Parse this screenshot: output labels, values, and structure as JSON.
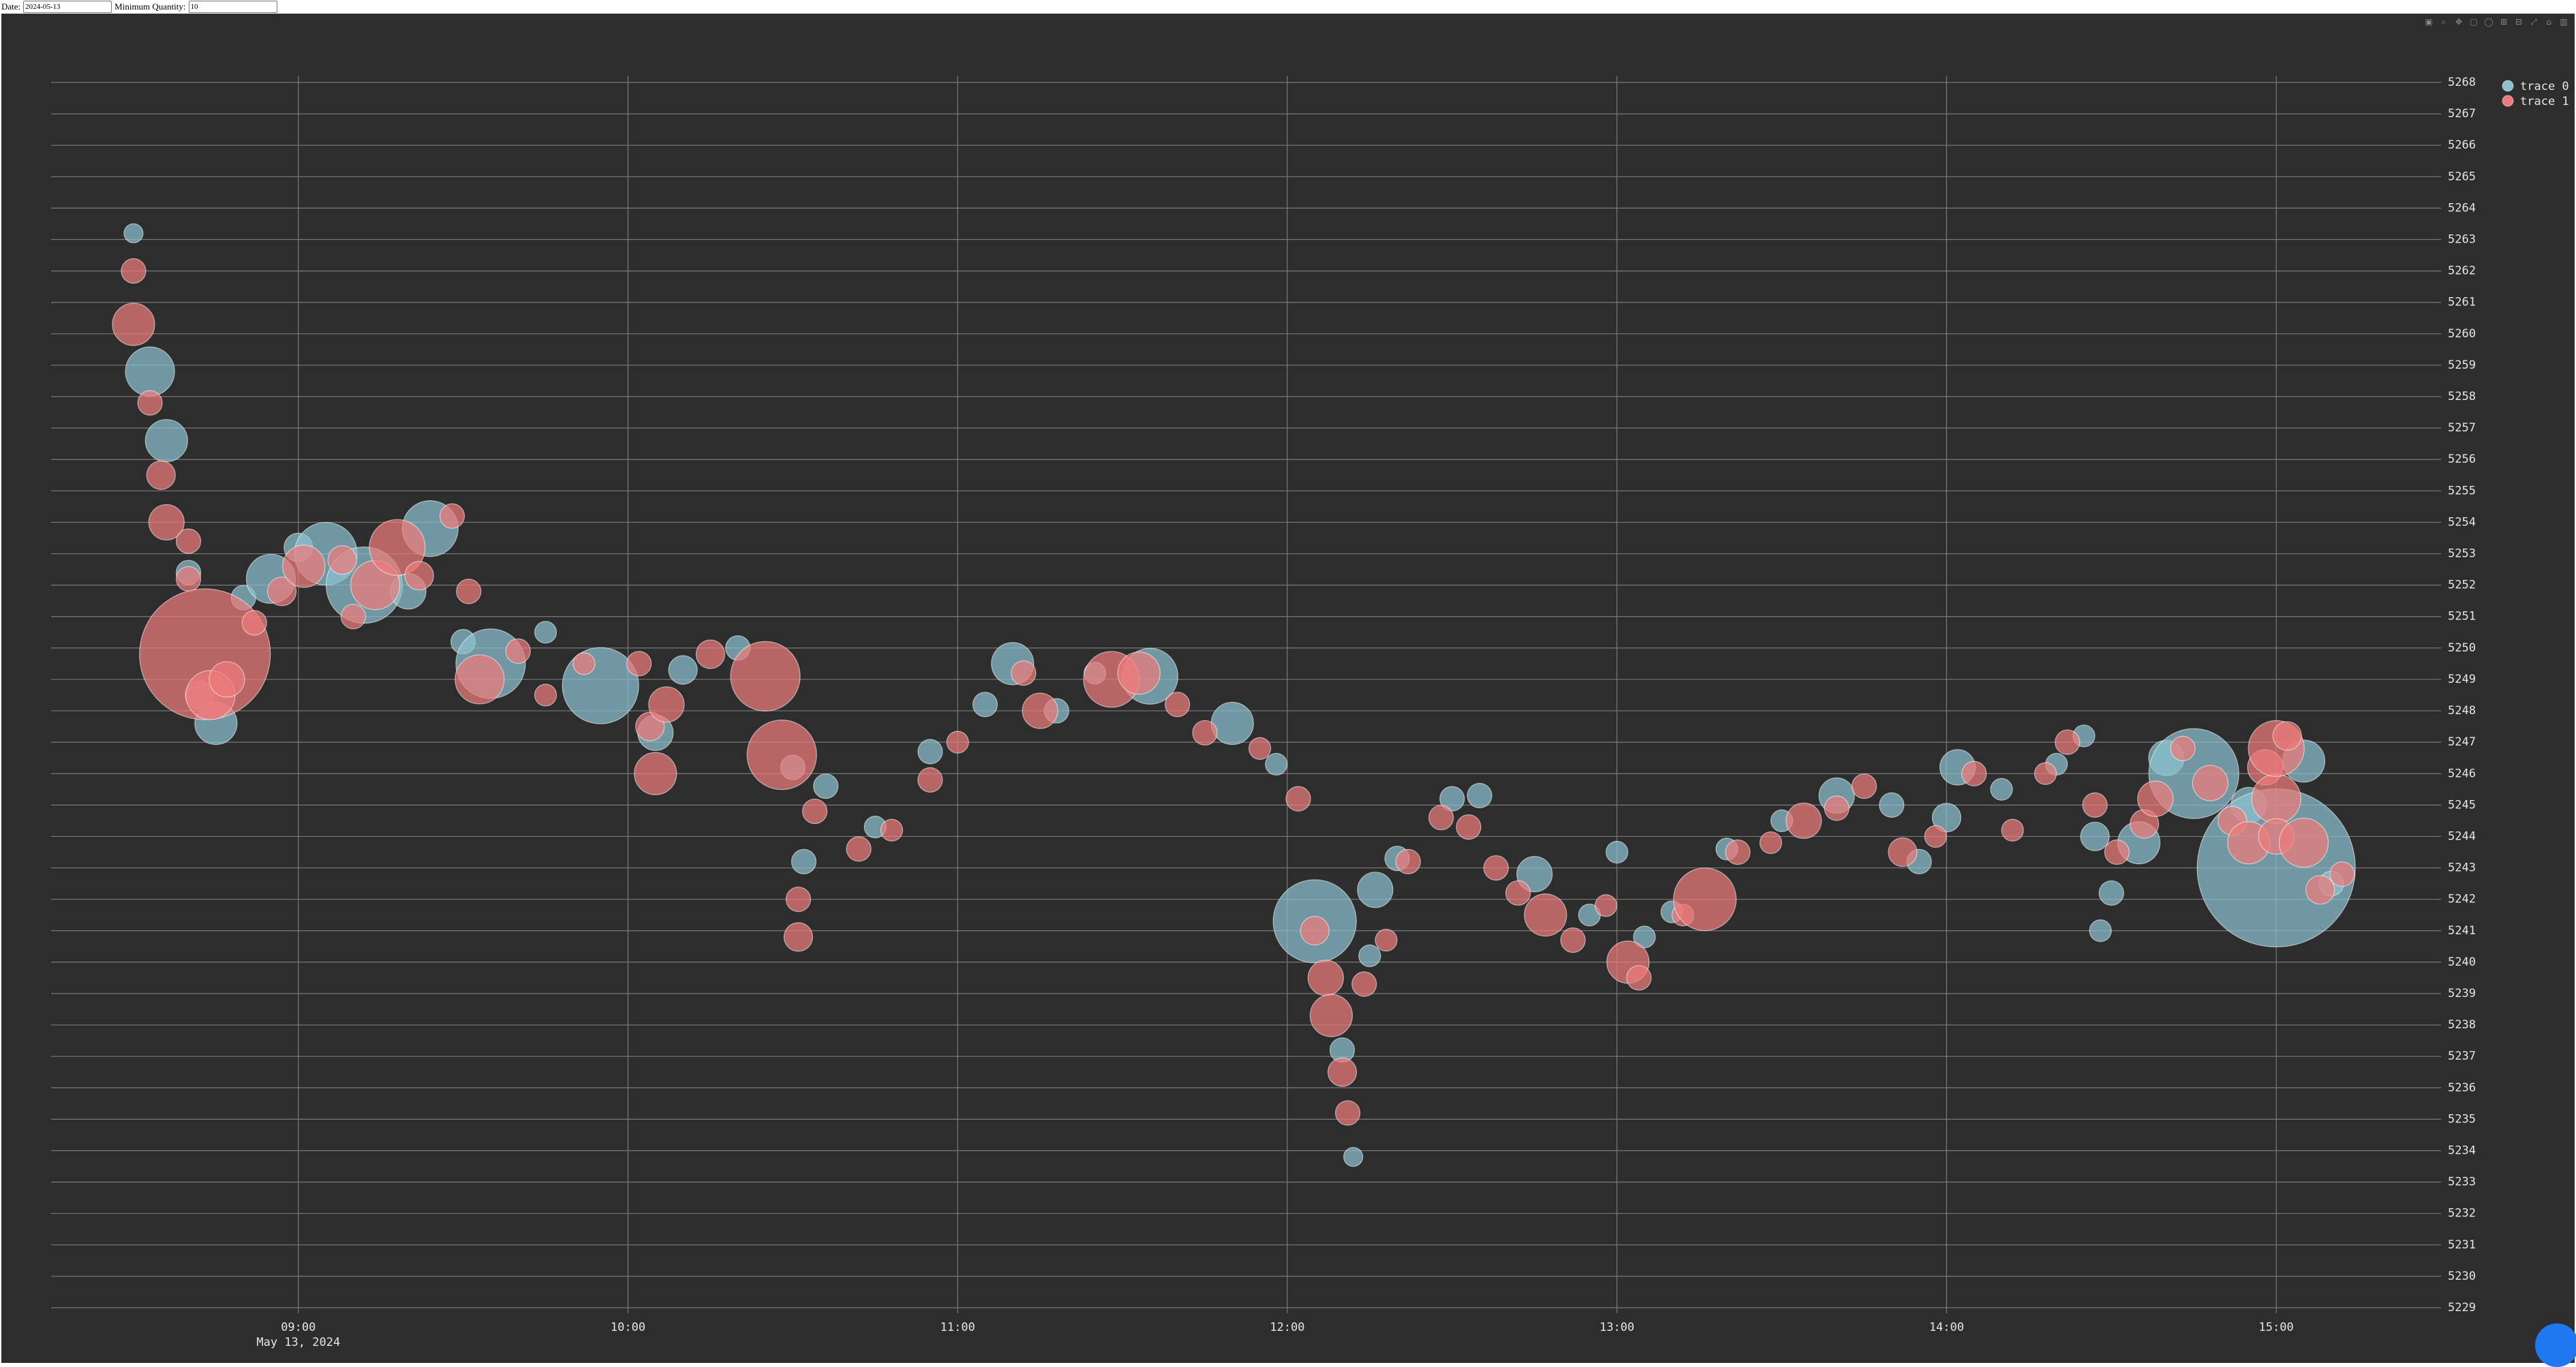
{
  "controls": {
    "date_label": "Date:",
    "date_value": "2024-05-13",
    "qty_label": "Minimum Quantity:",
    "qty_value": "10"
  },
  "modebar": [
    "camera-icon",
    "zoom-icon",
    "pan-icon",
    "box-select-icon",
    "lasso-icon",
    "zoom-in-icon",
    "zoom-out-icon",
    "autoscale-icon",
    "reset-axes-icon",
    "plotly-logo-icon"
  ],
  "colors": {
    "background": "#2d2d2d",
    "grid": "#7a7a7a",
    "trace0": "#8cc2d0",
    "trace1": "#ee7b7b",
    "text": "#e6e6e6"
  },
  "chart_data": {
    "type": "scatter",
    "title": "",
    "xlabel": "",
    "ylabel": "",
    "x_date_label": "May 13, 2024",
    "xlim": [
      "08:15",
      "15:30"
    ],
    "ylim": [
      5229,
      5268
    ],
    "xticks": [
      "09:00",
      "10:00",
      "11:00",
      "12:00",
      "13:00",
      "14:00",
      "15:00"
    ],
    "yticks": [
      5229,
      5230,
      5231,
      5232,
      5233,
      5234,
      5235,
      5236,
      5237,
      5238,
      5239,
      5240,
      5241,
      5242,
      5243,
      5244,
      5245,
      5246,
      5247,
      5248,
      5249,
      5250,
      5251,
      5252,
      5253,
      5254,
      5255,
      5256,
      5257,
      5258,
      5259,
      5260,
      5261,
      5262,
      5263,
      5264,
      5265,
      5266,
      5267,
      5268
    ],
    "legend_position": "top-right",
    "grid": true,
    "series": [
      {
        "name": "trace 0",
        "color": "#8cc2d0",
        "points": [
          {
            "x": "08:30",
            "y": 5263.2,
            "s": 0.8
          },
          {
            "x": "08:33",
            "y": 5258.8,
            "s": 3
          },
          {
            "x": "08:36",
            "y": 5256.6,
            "s": 2.5
          },
          {
            "x": "08:40",
            "y": 5252.4,
            "s": 1.2
          },
          {
            "x": "08:42",
            "y": 5248.5,
            "s": 1.5
          },
          {
            "x": "08:45",
            "y": 5247.6,
            "s": 2.5
          },
          {
            "x": "08:50",
            "y": 5251.6,
            "s": 1.2
          },
          {
            "x": "08:55",
            "y": 5252.2,
            "s": 3
          },
          {
            "x": "09:00",
            "y": 5253.2,
            "s": 1.5
          },
          {
            "x": "09:05",
            "y": 5253.0,
            "s": 4
          },
          {
            "x": "09:12",
            "y": 5252.0,
            "s": 5
          },
          {
            "x": "09:20",
            "y": 5251.8,
            "s": 2
          },
          {
            "x": "09:24",
            "y": 5253.8,
            "s": 3.5
          },
          {
            "x": "09:30",
            "y": 5250.2,
            "s": 1.2
          },
          {
            "x": "09:35",
            "y": 5249.5,
            "s": 4.5
          },
          {
            "x": "09:45",
            "y": 5250.5,
            "s": 1
          },
          {
            "x": "09:55",
            "y": 5248.8,
            "s": 5
          },
          {
            "x": "10:05",
            "y": 5247.3,
            "s": 2
          },
          {
            "x": "10:10",
            "y": 5249.3,
            "s": 1.5
          },
          {
            "x": "10:20",
            "y": 5250.0,
            "s": 1.2
          },
          {
            "x": "10:30",
            "y": 5246.2,
            "s": 1.2
          },
          {
            "x": "10:32",
            "y": 5243.2,
            "s": 1.2
          },
          {
            "x": "10:36",
            "y": 5245.6,
            "s": 1.2
          },
          {
            "x": "10:45",
            "y": 5244.3,
            "s": 1
          },
          {
            "x": "10:55",
            "y": 5246.7,
            "s": 1.2
          },
          {
            "x": "11:05",
            "y": 5248.2,
            "s": 1.2
          },
          {
            "x": "11:10",
            "y": 5249.5,
            "s": 2.5
          },
          {
            "x": "11:18",
            "y": 5248.0,
            "s": 1.2
          },
          {
            "x": "11:25",
            "y": 5249.2,
            "s": 1
          },
          {
            "x": "11:35",
            "y": 5249.1,
            "s": 3.5
          },
          {
            "x": "11:50",
            "y": 5247.6,
            "s": 2.5
          },
          {
            "x": "11:58",
            "y": 5246.3,
            "s": 1
          },
          {
            "x": "12:05",
            "y": 5241.3,
            "s": 5.5
          },
          {
            "x": "12:10",
            "y": 5237.2,
            "s": 1.2
          },
          {
            "x": "12:12",
            "y": 5233.8,
            "s": 0.8
          },
          {
            "x": "12:15",
            "y": 5240.2,
            "s": 1
          },
          {
            "x": "12:16",
            "y": 5242.3,
            "s": 2
          },
          {
            "x": "12:20",
            "y": 5243.3,
            "s": 1.2
          },
          {
            "x": "12:30",
            "y": 5245.2,
            "s": 1.2
          },
          {
            "x": "12:35",
            "y": 5245.3,
            "s": 1.2
          },
          {
            "x": "12:45",
            "y": 5242.8,
            "s": 2
          },
          {
            "x": "12:55",
            "y": 5241.5,
            "s": 1
          },
          {
            "x": "13:00",
            "y": 5243.5,
            "s": 1
          },
          {
            "x": "13:05",
            "y": 5240.8,
            "s": 1
          },
          {
            "x": "13:10",
            "y": 5241.6,
            "s": 1
          },
          {
            "x": "13:20",
            "y": 5243.6,
            "s": 1
          },
          {
            "x": "13:30",
            "y": 5244.5,
            "s": 1
          },
          {
            "x": "13:40",
            "y": 5245.3,
            "s": 2
          },
          {
            "x": "13:50",
            "y": 5245.0,
            "s": 1.2
          },
          {
            "x": "13:55",
            "y": 5243.2,
            "s": 1.2
          },
          {
            "x": "14:00",
            "y": 5244.6,
            "s": 1.5
          },
          {
            "x": "14:02",
            "y": 5246.2,
            "s": 2
          },
          {
            "x": "14:10",
            "y": 5245.5,
            "s": 1
          },
          {
            "x": "14:20",
            "y": 5246.3,
            "s": 1
          },
          {
            "x": "14:25",
            "y": 5247.2,
            "s": 1
          },
          {
            "x": "14:27",
            "y": 5244.0,
            "s": 1.5
          },
          {
            "x": "14:28",
            "y": 5241.0,
            "s": 1
          },
          {
            "x": "14:30",
            "y": 5242.2,
            "s": 1.2
          },
          {
            "x": "14:35",
            "y": 5243.8,
            "s": 2.5
          },
          {
            "x": "14:40",
            "y": 5246.5,
            "s": 2
          },
          {
            "x": "14:45",
            "y": 5246.0,
            "s": 6
          },
          {
            "x": "14:55",
            "y": 5245.0,
            "s": 2
          },
          {
            "x": "15:00",
            "y": 5243.0,
            "s": 11
          },
          {
            "x": "15:05",
            "y": 5246.4,
            "s": 2.5
          },
          {
            "x": "15:10",
            "y": 5242.5,
            "s": 1.2
          }
        ]
      },
      {
        "name": "trace 1",
        "color": "#ee7b7b",
        "points": [
          {
            "x": "08:30",
            "y": 5262.0,
            "s": 1.2
          },
          {
            "x": "08:30",
            "y": 5260.3,
            "s": 2.5
          },
          {
            "x": "08:33",
            "y": 5257.8,
            "s": 1.2
          },
          {
            "x": "08:35",
            "y": 5255.5,
            "s": 1.5
          },
          {
            "x": "08:36",
            "y": 5254.0,
            "s": 2
          },
          {
            "x": "08:40",
            "y": 5253.4,
            "s": 1.2
          },
          {
            "x": "08:40",
            "y": 5252.2,
            "s": 1.2
          },
          {
            "x": "08:43",
            "y": 5249.8,
            "s": 9
          },
          {
            "x": "08:44",
            "y": 5248.5,
            "s": 3
          },
          {
            "x": "08:47",
            "y": 5249.0,
            "s": 2
          },
          {
            "x": "08:52",
            "y": 5250.8,
            "s": 1.2
          },
          {
            "x": "08:57",
            "y": 5251.8,
            "s": 1.5
          },
          {
            "x": "09:01",
            "y": 5252.6,
            "s": 2.5
          },
          {
            "x": "09:08",
            "y": 5252.8,
            "s": 1.5
          },
          {
            "x": "09:10",
            "y": 5251.0,
            "s": 1.2
          },
          {
            "x": "09:14",
            "y": 5252.0,
            "s": 3
          },
          {
            "x": "09:18",
            "y": 5253.2,
            "s": 3.5
          },
          {
            "x": "09:22",
            "y": 5252.3,
            "s": 1.5
          },
          {
            "x": "09:28",
            "y": 5254.2,
            "s": 1.2
          },
          {
            "x": "09:31",
            "y": 5251.8,
            "s": 1.2
          },
          {
            "x": "09:33",
            "y": 5249.0,
            "s": 3
          },
          {
            "x": "09:40",
            "y": 5249.9,
            "s": 1.2
          },
          {
            "x": "09:45",
            "y": 5248.5,
            "s": 1
          },
          {
            "x": "09:52",
            "y": 5249.5,
            "s": 1
          },
          {
            "x": "10:02",
            "y": 5249.5,
            "s": 1.2
          },
          {
            "x": "10:04",
            "y": 5247.5,
            "s": 1.5
          },
          {
            "x": "10:05",
            "y": 5246.0,
            "s": 2.5
          },
          {
            "x": "10:07",
            "y": 5248.2,
            "s": 2
          },
          {
            "x": "10:15",
            "y": 5249.8,
            "s": 1.5
          },
          {
            "x": "10:25",
            "y": 5249.1,
            "s": 4.5
          },
          {
            "x": "10:28",
            "y": 5246.6,
            "s": 4.5
          },
          {
            "x": "10:31",
            "y": 5242.0,
            "s": 1.2
          },
          {
            "x": "10:31",
            "y": 5240.8,
            "s": 1.5
          },
          {
            "x": "10:34",
            "y": 5244.8,
            "s": 1.2
          },
          {
            "x": "10:42",
            "y": 5243.6,
            "s": 1.2
          },
          {
            "x": "10:48",
            "y": 5244.2,
            "s": 1
          },
          {
            "x": "10:55",
            "y": 5245.8,
            "s": 1.2
          },
          {
            "x": "11:00",
            "y": 5247.0,
            "s": 1
          },
          {
            "x": "11:12",
            "y": 5249.2,
            "s": 1.2
          },
          {
            "x": "11:15",
            "y": 5248.0,
            "s": 2
          },
          {
            "x": "11:28",
            "y": 5249.0,
            "s": 3.5
          },
          {
            "x": "11:33",
            "y": 5249.2,
            "s": 2.5
          },
          {
            "x": "11:40",
            "y": 5248.2,
            "s": 1.2
          },
          {
            "x": "11:45",
            "y": 5247.3,
            "s": 1.2
          },
          {
            "x": "11:55",
            "y": 5246.8,
            "s": 1
          },
          {
            "x": "12:02",
            "y": 5245.2,
            "s": 1.2
          },
          {
            "x": "12:05",
            "y": 5241.0,
            "s": 1.5
          },
          {
            "x": "12:07",
            "y": 5239.5,
            "s": 2
          },
          {
            "x": "12:08",
            "y": 5238.3,
            "s": 2.5
          },
          {
            "x": "12:10",
            "y": 5236.5,
            "s": 1.5
          },
          {
            "x": "12:11",
            "y": 5235.2,
            "s": 1.2
          },
          {
            "x": "12:14",
            "y": 5239.3,
            "s": 1.2
          },
          {
            "x": "12:18",
            "y": 5240.7,
            "s": 1
          },
          {
            "x": "12:22",
            "y": 5243.2,
            "s": 1.2
          },
          {
            "x": "12:28",
            "y": 5244.6,
            "s": 1.2
          },
          {
            "x": "12:33",
            "y": 5244.3,
            "s": 1.2
          },
          {
            "x": "12:38",
            "y": 5243.0,
            "s": 1.2
          },
          {
            "x": "12:42",
            "y": 5242.2,
            "s": 1.2
          },
          {
            "x": "12:47",
            "y": 5241.5,
            "s": 2.5
          },
          {
            "x": "12:52",
            "y": 5240.7,
            "s": 1.2
          },
          {
            "x": "12:58",
            "y": 5241.8,
            "s": 1
          },
          {
            "x": "13:02",
            "y": 5240.0,
            "s": 2.5
          },
          {
            "x": "13:04",
            "y": 5239.5,
            "s": 1.2
          },
          {
            "x": "13:12",
            "y": 5241.5,
            "s": 1
          },
          {
            "x": "13:16",
            "y": 5242.0,
            "s": 4
          },
          {
            "x": "13:22",
            "y": 5243.5,
            "s": 1.2
          },
          {
            "x": "13:28",
            "y": 5243.8,
            "s": 1
          },
          {
            "x": "13:34",
            "y": 5244.5,
            "s": 2
          },
          {
            "x": "13:40",
            "y": 5244.9,
            "s": 1.2
          },
          {
            "x": "13:45",
            "y": 5245.6,
            "s": 1.2
          },
          {
            "x": "13:52",
            "y": 5243.5,
            "s": 1.5
          },
          {
            "x": "13:58",
            "y": 5244.0,
            "s": 1
          },
          {
            "x": "14:05",
            "y": 5246.0,
            "s": 1.2
          },
          {
            "x": "14:12",
            "y": 5244.2,
            "s": 1
          },
          {
            "x": "14:18",
            "y": 5246.0,
            "s": 1
          },
          {
            "x": "14:22",
            "y": 5247.0,
            "s": 1.2
          },
          {
            "x": "14:27",
            "y": 5245.0,
            "s": 1.2
          },
          {
            "x": "14:31",
            "y": 5243.5,
            "s": 1.2
          },
          {
            "x": "14:36",
            "y": 5244.4,
            "s": 1.5
          },
          {
            "x": "14:38",
            "y": 5245.2,
            "s": 2
          },
          {
            "x": "14:43",
            "y": 5246.8,
            "s": 1.2
          },
          {
            "x": "14:48",
            "y": 5245.7,
            "s": 2
          },
          {
            "x": "14:52",
            "y": 5244.5,
            "s": 1.5
          },
          {
            "x": "14:55",
            "y": 5243.8,
            "s": 2.5
          },
          {
            "x": "14:58",
            "y": 5246.2,
            "s": 2
          },
          {
            "x": "15:00",
            "y": 5245.2,
            "s": 3
          },
          {
            "x": "15:00",
            "y": 5244.0,
            "s": 2
          },
          {
            "x": "15:00",
            "y": 5246.8,
            "s": 3.5
          },
          {
            "x": "15:02",
            "y": 5247.2,
            "s": 1.5
          },
          {
            "x": "15:05",
            "y": 5243.8,
            "s": 3
          },
          {
            "x": "15:08",
            "y": 5242.3,
            "s": 1.5
          },
          {
            "x": "15:12",
            "y": 5242.8,
            "s": 1.2
          }
        ]
      }
    ]
  }
}
